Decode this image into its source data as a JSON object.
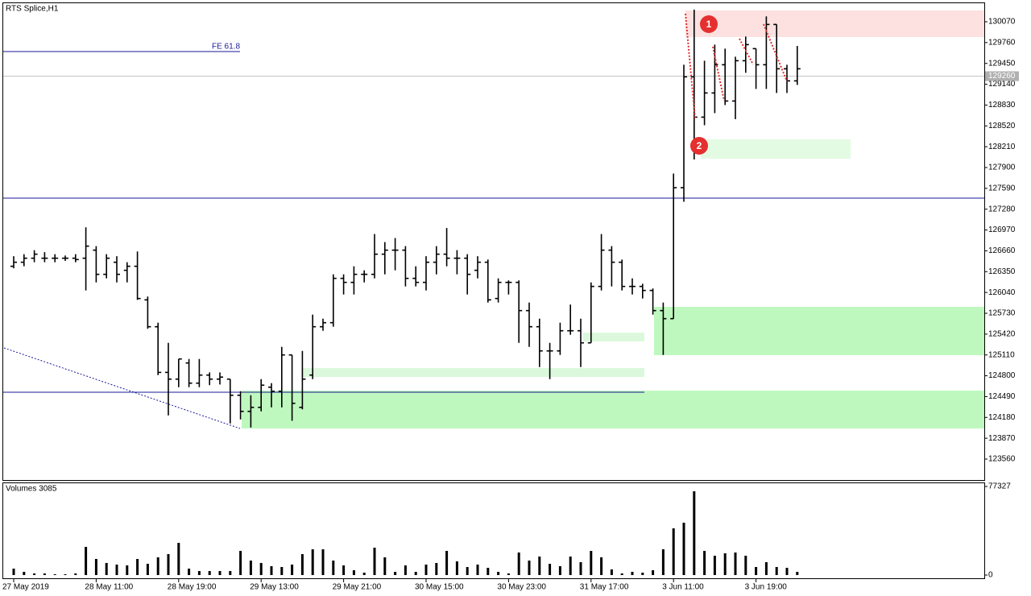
{
  "chart_data": [
    {
      "type": "ohlc",
      "title": "RTS Splice,H1",
      "ylim": [
        123248,
        130334
      ],
      "yticks": [
        123560,
        123870,
        124180,
        124490,
        124800,
        125110,
        125420,
        125730,
        126040,
        126350,
        126660,
        126970,
        127280,
        127590,
        127900,
        128210,
        128520,
        128830,
        129140,
        129450,
        129760,
        130070
      ],
      "last_price": 129260,
      "annotations": [
        "FE 61.8",
        "1",
        "2"
      ],
      "color": "#000000",
      "open": [
        126430,
        126490,
        126550,
        126550,
        126550,
        126550,
        126550,
        126550,
        126670,
        126310,
        126490,
        126370,
        126430,
        125930,
        125530,
        124850,
        124750,
        124990,
        124690,
        124810,
        124750,
        124750,
        124510,
        124270,
        124330,
        124630,
        124570,
        125110,
        124330,
        124810,
        125530,
        125590,
        126250,
        126190,
        126310,
        126310,
        126610,
        126670,
        126670,
        126250,
        126190,
        126490,
        126610,
        126550,
        126550,
        126370,
        126490,
        125950,
        126190,
        126190,
        125770,
        125530,
        125170,
        125170,
        125470,
        125470,
        125290,
        126130,
        126670,
        126490,
        126130,
        126130,
        126070,
        125770,
        125650,
        127600,
        129250,
        128650,
        129010,
        129430,
        128890,
        129490,
        129670,
        129430,
        130030,
        129370,
        129190
      ],
      "high": [
        126580,
        126610,
        126670,
        126640,
        126610,
        126590,
        126610,
        127010,
        126730,
        126610,
        126580,
        126490,
        126650,
        125980,
        125590,
        125290,
        125050,
        125050,
        125050,
        124850,
        124850,
        124750,
        124570,
        124510,
        124750,
        124690,
        125230,
        125110,
        125170,
        125710,
        125650,
        126310,
        126310,
        126430,
        126370,
        126910,
        126790,
        126850,
        126730,
        126430,
        126580,
        126730,
        127000,
        126670,
        126610,
        126580,
        126530,
        126250,
        126220,
        126220,
        125890,
        125650,
        125290,
        125590,
        125860,
        125650,
        126190,
        126910,
        126730,
        126530,
        126250,
        126170,
        126100,
        125890,
        127810,
        129430,
        130250,
        129490,
        129730,
        129670,
        129550,
        129850,
        129670,
        130150,
        130030,
        129430,
        129710
      ],
      "low": [
        126400,
        126430,
        126490,
        126490,
        126490,
        126510,
        126490,
        126070,
        126190,
        126250,
        126190,
        126190,
        125930,
        125500,
        124810,
        124210,
        124630,
        124630,
        124630,
        124660,
        124670,
        124090,
        124150,
        124030,
        124270,
        124330,
        124330,
        124130,
        124300,
        124750,
        125470,
        125530,
        126010,
        126010,
        126190,
        126250,
        126310,
        126370,
        126130,
        126130,
        126070,
        126310,
        126430,
        126310,
        126010,
        126250,
        125890,
        125890,
        126010,
        125290,
        125230,
        124930,
        124750,
        125110,
        125410,
        124930,
        125290,
        126070,
        126130,
        126070,
        126010,
        125950,
        125710,
        125110,
        125650,
        127390,
        128020,
        128530,
        128710,
        128830,
        128620,
        129310,
        129070,
        129070,
        129010,
        129010,
        129130
      ],
      "close": [
        126490,
        126550,
        126610,
        126550,
        126550,
        126550,
        126530,
        126730,
        126310,
        126550,
        126310,
        126430,
        125950,
        125530,
        124850,
        124750,
        125050,
        124690,
        124810,
        124750,
        124780,
        124510,
        124270,
        124330,
        124660,
        124570,
        125110,
        124390,
        124750,
        125530,
        125590,
        126250,
        126190,
        126310,
        126310,
        126610,
        126670,
        126670,
        126250,
        126190,
        126490,
        126610,
        126550,
        126550,
        126310,
        126490,
        125930,
        126190,
        126190,
        125770,
        125530,
        125170,
        125170,
        125470,
        125470,
        125290,
        126130,
        126670,
        126490,
        126130,
        126130,
        126070,
        125770,
        125650,
        127600,
        129250,
        128650,
        129010,
        129430,
        128890,
        129490,
        129730,
        129430,
        130030,
        129370,
        129190,
        129370
      ]
    },
    {
      "type": "bar",
      "title": "Volumes 3085",
      "ylim": [
        0,
        80140
      ],
      "yticks": [
        0,
        77327
      ],
      "color": "#000000",
      "categories": [
        "27 May 2019",
        null,
        null,
        null,
        null,
        null,
        null,
        null,
        "28 May 11:00",
        null,
        null,
        null,
        null,
        null,
        null,
        null,
        "28 May 19:00",
        null,
        null,
        null,
        null,
        null,
        null,
        null,
        "29 May 13:00",
        null,
        null,
        null,
        null,
        null,
        null,
        null,
        "29 May 21:00",
        null,
        null,
        null,
        null,
        null,
        null,
        null,
        "30 May 15:00",
        null,
        null,
        null,
        null,
        null,
        null,
        null,
        "30 May 23:00",
        null,
        null,
        null,
        null,
        null,
        null,
        null,
        "31 May 17:00",
        null,
        null,
        null,
        null,
        null,
        null,
        null,
        "3 Jun 11:00",
        null,
        null,
        null,
        null,
        null,
        null,
        null,
        "3 Jun 19:00",
        null,
        null,
        null,
        null
      ],
      "values": [
        5620,
        2810,
        1410,
        1410,
        700,
        700,
        1410,
        24610,
        14060,
        10550,
        9140,
        8440,
        14060,
        9840,
        15470,
        18280,
        28120,
        5620,
        3520,
        3520,
        3520,
        3520,
        21090,
        12650,
        10550,
        7730,
        7030,
        9140,
        18280,
        22500,
        22500,
        12650,
        8440,
        4220,
        2110,
        23900,
        15470,
        2810,
        8440,
        2810,
        9140,
        10550,
        21090,
        11950,
        7030,
        9140,
        6330,
        2810,
        1410,
        19680,
        12650,
        16170,
        9840,
        7730,
        16170,
        11250,
        21090,
        15470,
        4920,
        1410,
        2810,
        2110,
        4220,
        22500,
        40770,
        45700,
        73110,
        21090,
        16870,
        18980,
        19680,
        16870,
        7030,
        11250,
        7030,
        6330,
        2810
      ]
    }
  ]
}
